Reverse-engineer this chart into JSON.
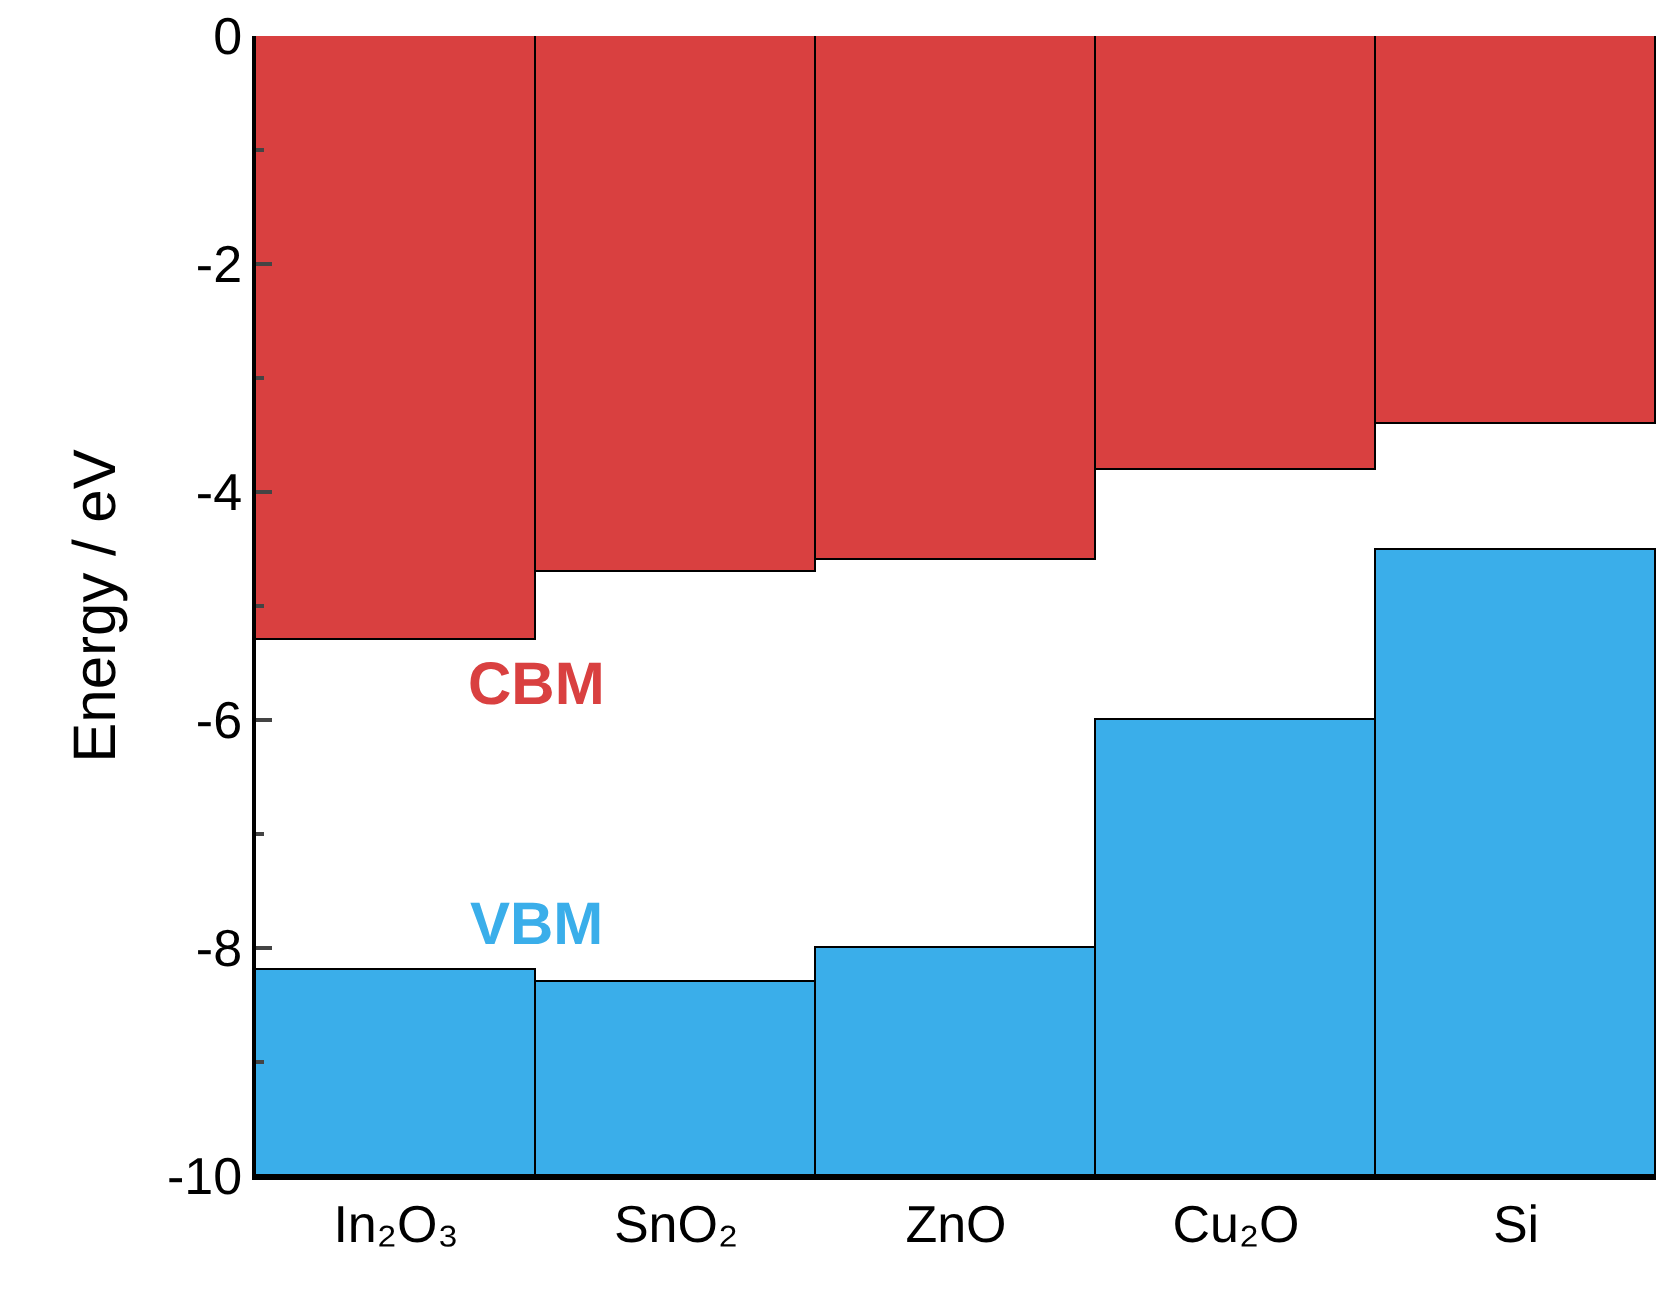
{
  "chart_data": {
    "type": "bar",
    "ylabel": "Energy / eV",
    "categories": [
      "In₂O₃",
      "SnO₂",
      "ZnO",
      "Cu₂O",
      "Si"
    ],
    "series": [
      {
        "color": "#d94040",
        "base": [
          0,
          0,
          0,
          0,
          0
        ],
        "values": [
          -5.3,
          -4.7,
          -4.6,
          -3.8,
          -3.4
        ]
      },
      {
        "color": "#3aaeea",
        "base": [
          -10,
          -10,
          -10,
          -10,
          -10
        ],
        "values": [
          1.8,
          1.7,
          2.0,
          4.0,
          5.5
        ]
      }
    ],
    "annotations": [
      "CBM",
      "VBM"
    ],
    "ylim": [
      -10,
      0
    ],
    "yticks": [
      -10,
      -8,
      -6,
      -4,
      -2,
      0
    ],
    "grid": false
  }
}
